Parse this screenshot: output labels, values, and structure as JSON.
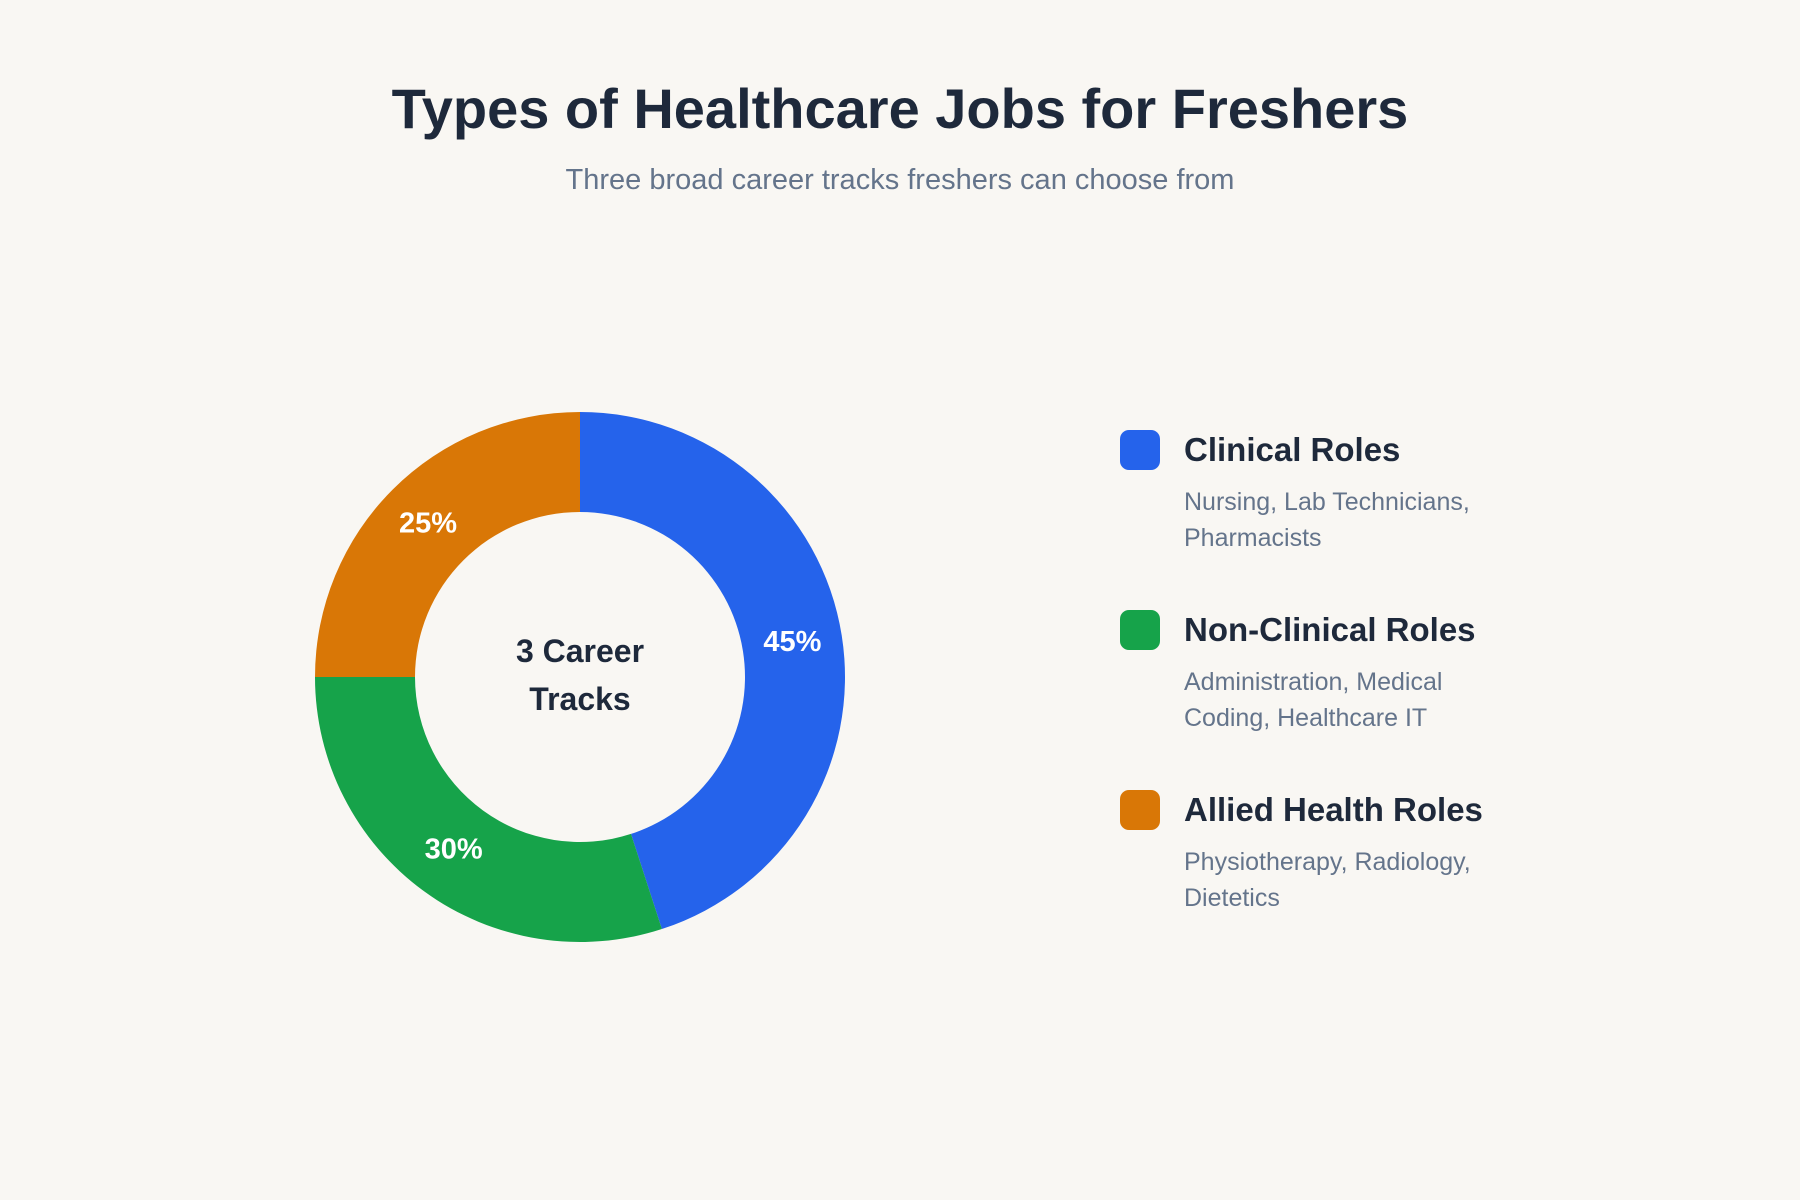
{
  "chart_data": {
    "type": "donut",
    "title": "Types of Healthcare Jobs for Freshers",
    "subtitle": "Three broad career tracks freshers can choose from",
    "center_label": "3 Career Tracks",
    "categories": [
      "Clinical Roles",
      "Non-Clinical Roles",
      "Allied Health Roles"
    ],
    "descriptions": [
      "Nursing, Lab Technicians, Pharmacists",
      "Administration, Medical Coding, Healthcare IT",
      "Physiotherapy, Radiology, Dietetics"
    ],
    "values": [
      45,
      30,
      25
    ],
    "value_labels": [
      "45%",
      "30%",
      "25%"
    ],
    "colors": [
      "#2563eb",
      "#16a34a",
      "#d97706"
    ]
  }
}
